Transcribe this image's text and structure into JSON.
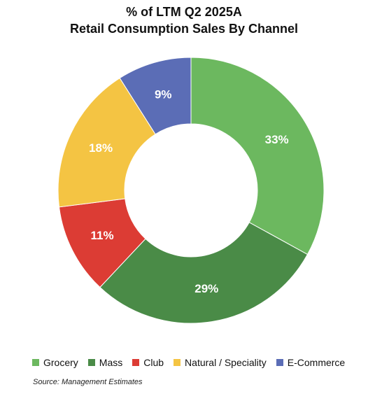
{
  "chart_data": {
    "type": "pie",
    "subtype": "donut",
    "title": "% of LTM Q2 2025A",
    "subtitle": "Retail Consumption Sales By Channel",
    "categories": [
      "Grocery",
      "Mass",
      "Club",
      "Natural / Speciality",
      "E-Commerce"
    ],
    "values": [
      33,
      29,
      11,
      18,
      9
    ],
    "data_labels": [
      "33%",
      "29%",
      "11%",
      "18%",
      "9%"
    ],
    "colors": [
      "#6cb85f",
      "#4a8b47",
      "#dc3c34",
      "#f4c443",
      "#5b6db6"
    ],
    "legend_position": "bottom"
  },
  "source": "Source: Management Estimates"
}
